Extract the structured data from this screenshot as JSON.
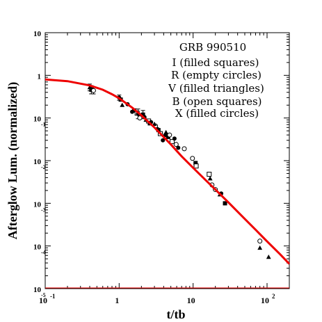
{
  "chart_data": {
    "type": "scatter",
    "title": "",
    "xlabel": "t/tb",
    "ylabel": "Afterglow Lum. (normalized)",
    "xscale": "log",
    "yscale": "log",
    "xlim": [
      0.1,
      200
    ],
    "ylim": [
      1e-05,
      10
    ],
    "grid": false,
    "legend": "none",
    "x_ticks": [
      {
        "value": 0.1,
        "base": "10",
        "exp": "-1"
      },
      {
        "value": 1,
        "base": "1",
        "exp": ""
      },
      {
        "value": 10,
        "base": "10",
        "exp": ""
      },
      {
        "value": 100,
        "base": "10",
        "exp": "2"
      }
    ],
    "y_ticks": [
      {
        "value": 10,
        "base": "10",
        "exp": ""
      },
      {
        "value": 1,
        "base": "1",
        "exp": ""
      },
      {
        "value": 0.1,
        "base": "10",
        "exp": "-1"
      },
      {
        "value": 0.01,
        "base": "10",
        "exp": "-2"
      },
      {
        "value": 0.001,
        "base": "10",
        "exp": "-3"
      },
      {
        "value": 0.0001,
        "base": "10",
        "exp": "-4"
      },
      {
        "value": 1e-05,
        "base": "10",
        "exp": "-5"
      }
    ],
    "annotations": [
      "GRB 990510",
      "I (filled squares)",
      "R (empty circles)",
      "V (filled triangles)",
      "B (open squares)",
      "X (filled circles)"
    ],
    "curve": {
      "color": "#ee0000",
      "x": [
        0.1,
        0.2,
        0.4,
        0.6,
        0.8,
        1,
        1.5,
        2,
        3,
        4,
        5,
        7,
        10,
        15,
        20,
        30,
        50,
        70,
        100,
        150,
        200
      ],
      "y": [
        0.8,
        0.73,
        0.58,
        0.46,
        0.36,
        0.29,
        0.175,
        0.115,
        0.06,
        0.036,
        0.024,
        0.0126,
        0.0068,
        0.0034,
        0.0021,
        0.00105,
        0.00043,
        0.00024,
        0.000128,
        6.4e-05,
        3.8e-05
      ]
    },
    "series": [
      {
        "marker": "filled-square",
        "points": [
          {
            "x": 0.42,
            "y": 0.46,
            "err": 1.25
          },
          {
            "x": 1.05,
            "y": 0.27
          },
          {
            "x": 1.6,
            "y": 0.15
          },
          {
            "x": 2.1,
            "y": 0.12,
            "err": 1.25
          },
          {
            "x": 2.6,
            "y": 0.075
          },
          {
            "x": 3.4,
            "y": 0.052
          },
          {
            "x": 4.6,
            "y": 0.036
          },
          {
            "x": 10.8,
            "y": 0.0088
          },
          {
            "x": 27,
            "y": 0.001
          }
        ]
      },
      {
        "marker": "empty-circle",
        "points": [
          {
            "x": 0.45,
            "y": 0.44,
            "err": 1.2
          },
          {
            "x": 1.9,
            "y": 0.1
          },
          {
            "x": 3.1,
            "y": 0.065
          },
          {
            "x": 4.8,
            "y": 0.04
          },
          {
            "x": 5.9,
            "y": 0.024
          },
          {
            "x": 7.6,
            "y": 0.019
          },
          {
            "x": 9.8,
            "y": 0.0113
          },
          {
            "x": 18,
            "y": 0.0027
          },
          {
            "x": 20,
            "y": 0.0021
          },
          {
            "x": 80,
            "y": 0.00013
          }
        ]
      },
      {
        "marker": "filled-triangle",
        "points": [
          {
            "x": 0.4,
            "y": 0.52,
            "err": 1.2
          },
          {
            "x": 1.1,
            "y": 0.2
          },
          {
            "x": 2.3,
            "y": 0.09
          },
          {
            "x": 3.0,
            "y": 0.072
          },
          {
            "x": 4.3,
            "y": 0.046
          },
          {
            "x": 17,
            "y": 0.0038
          },
          {
            "x": 23,
            "y": 0.0016
          },
          {
            "x": 80,
            "y": 9e-05
          },
          {
            "x": 105,
            "y": 5.5e-05
          }
        ]
      },
      {
        "marker": "open-square",
        "points": [
          {
            "x": 1.75,
            "y": 0.13
          },
          {
            "x": 2.5,
            "y": 0.085
          },
          {
            "x": 3.6,
            "y": 0.043
          },
          {
            "x": 5.2,
            "y": 0.028
          },
          {
            "x": 11,
            "y": 0.0075
          },
          {
            "x": 16.5,
            "y": 0.0048
          }
        ]
      },
      {
        "marker": "filled-circle",
        "points": [
          {
            "x": 1.0,
            "y": 0.3,
            "err": 1.15
          },
          {
            "x": 1.3,
            "y": 0.21
          },
          {
            "x": 1.5,
            "y": 0.14
          },
          {
            "x": 1.8,
            "y": 0.125,
            "err": 1.3
          },
          {
            "x": 2.2,
            "y": 0.105
          },
          {
            "x": 2.7,
            "y": 0.08
          },
          {
            "x": 3.3,
            "y": 0.055
          },
          {
            "x": 3.9,
            "y": 0.03
          },
          {
            "x": 4.2,
            "y": 0.04
          },
          {
            "x": 5.6,
            "y": 0.033
          },
          {
            "x": 6.3,
            "y": 0.02
          },
          {
            "x": 24,
            "y": 0.0017
          }
        ]
      }
    ]
  }
}
